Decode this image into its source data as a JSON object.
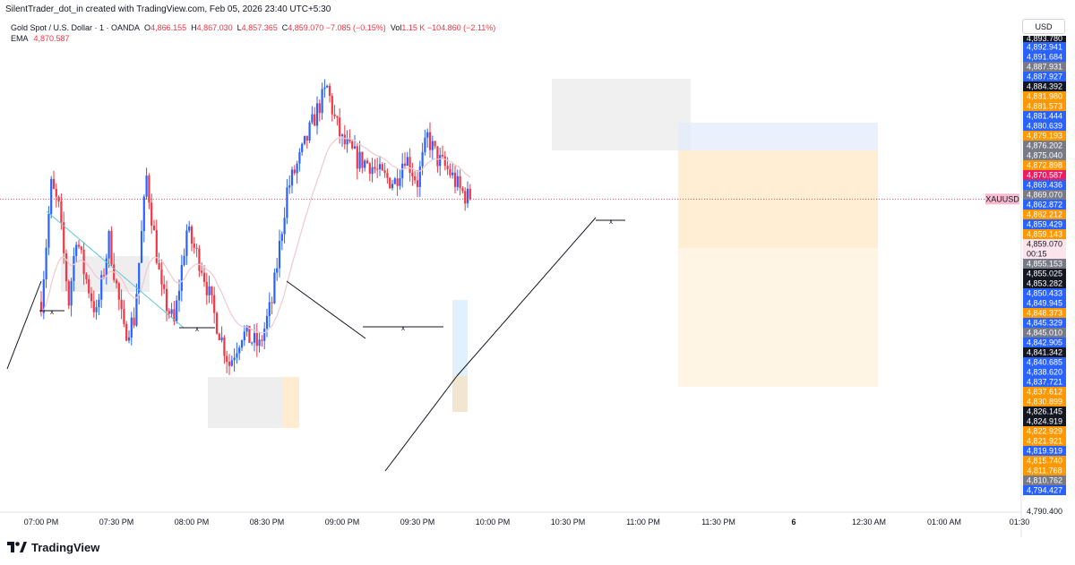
{
  "caption": "SilentTrader_dot_in created with TradingView.com, Feb 05, 2026 23:40 UTC+5:30",
  "legend": {
    "symbol": "Gold Spot / U.S. Dollar · 1 · OANDA",
    "o_label": "O",
    "o": "4,866.155",
    "h_label": "H",
    "h": "4,867.030",
    "l_label": "L",
    "l": "4,857.365",
    "c_label": "C",
    "c": "4,859.070 −7.085 (−0.15%)",
    "vol_label": "Vol",
    "vol": "1.15 K −104.860 (−2.11%)",
    "ema_label": "EMA",
    "ema": "4,870.587"
  },
  "currency_button": "USD",
  "brand": "TradingView",
  "colors": {
    "up": "#2962ff",
    "down": "#f23645",
    "ema": "#f0c9cd",
    "accent": "#131722"
  },
  "chart_data": {
    "type": "candlestick",
    "symbol": "XAUUSD",
    "ylim": [
      4790.4,
      4894.5
    ],
    "x_tick_labels": [
      "07:00 PM",
      "07:30 PM",
      "08:00 PM",
      "08:30 PM",
      "09:00 PM",
      "09:30 PM",
      "10:00 PM",
      "10:30 PM",
      "11:00 PM",
      "11:30 PM",
      "6",
      "12:30 AM",
      "01:00 AM",
      "01:30"
    ],
    "last_price": {
      "label": "XAUUSD",
      "value": "4,859.070",
      "countdown": "00:15",
      "color": "#f23645"
    },
    "price_labels": [
      {
        "value": "4,892.941",
        "color": "#2962ff"
      },
      {
        "value": "4,891.684",
        "color": "#2962ff"
      },
      {
        "value": "4,887.931",
        "color": "#787b86"
      },
      {
        "value": "4,887.927",
        "color": "#2962ff"
      },
      {
        "value": "4,884.392",
        "color": "#131722"
      },
      {
        "value": "4,881.980",
        "color": "#ff9800"
      },
      {
        "value": "4,881.573",
        "color": "#ff9800"
      },
      {
        "value": "4,881.444",
        "color": "#2962ff"
      },
      {
        "value": "4,880.639",
        "color": "#2962ff"
      },
      {
        "value": "4,879.193",
        "color": "#ff9800"
      },
      {
        "value": "4,876.202",
        "color": "#787b86"
      },
      {
        "value": "4,875.040",
        "color": "#787b86"
      },
      {
        "value": "4,872.898",
        "color": "#ff9800"
      },
      {
        "value": "4,870.587",
        "color": "#e91e63"
      },
      {
        "value": "4,869.436",
        "color": "#2962ff"
      },
      {
        "value": "4,869.070",
        "color": "#787b86"
      },
      {
        "value": "4,862.872",
        "color": "#2962ff"
      },
      {
        "value": "4,862.212",
        "color": "#ff9800"
      },
      {
        "value": "4,859.429",
        "color": "#2962ff"
      },
      {
        "value": "4,859.143",
        "color": "#ff9800"
      },
      {
        "value": "4,855.153",
        "color": "#787b86"
      },
      {
        "value": "4,855.025",
        "color": "#131722"
      },
      {
        "value": "4,853.282",
        "color": "#131722"
      },
      {
        "value": "4,850.433",
        "color": "#2962ff"
      },
      {
        "value": "4,849.945",
        "color": "#2962ff"
      },
      {
        "value": "4,848.373",
        "color": "#ff9800"
      },
      {
        "value": "4,845.329",
        "color": "#2962ff"
      },
      {
        "value": "4,845.010",
        "color": "#787b86"
      },
      {
        "value": "4,842.905",
        "color": "#2962ff"
      },
      {
        "value": "4,841.342",
        "color": "#131722"
      },
      {
        "value": "4,840.685",
        "color": "#2962ff"
      },
      {
        "value": "4,838.620",
        "color": "#2962ff"
      },
      {
        "value": "4,837.721",
        "color": "#2962ff"
      },
      {
        "value": "4,837.612",
        "color": "#ff9800"
      },
      {
        "value": "4,830.899",
        "color": "#ff9800"
      },
      {
        "value": "4,826.145",
        "color": "#131722"
      },
      {
        "value": "4,824.919",
        "color": "#131722"
      },
      {
        "value": "4,822.929",
        "color": "#ff9800"
      },
      {
        "value": "4,821.921",
        "color": "#ff9800"
      },
      {
        "value": "4,819.919",
        "color": "#2962ff"
      },
      {
        "value": "4,815.740",
        "color": "#ff9800"
      },
      {
        "value": "4,811.768",
        "color": "#ff9800"
      },
      {
        "value": "4,810.762",
        "color": "#787b86"
      },
      {
        "value": "4,794.427",
        "color": "#2962ff"
      }
    ],
    "price_label_top_partial": "4,893.780",
    "axis_bottom_label": "4,790.400",
    "candle_path": [
      {
        "t": 0,
        "p": 4836
      },
      {
        "t": 4,
        "p": 4862
      },
      {
        "t": 7,
        "p": 4857
      },
      {
        "t": 11,
        "p": 4836
      },
      {
        "t": 14,
        "p": 4851
      },
      {
        "t": 17,
        "p": 4843
      },
      {
        "t": 22,
        "p": 4833
      },
      {
        "t": 27,
        "p": 4850
      },
      {
        "t": 33,
        "p": 4829
      },
      {
        "t": 37,
        "p": 4832
      },
      {
        "t": 42,
        "p": 4864
      },
      {
        "t": 48,
        "p": 4838
      },
      {
        "t": 53,
        "p": 4831
      },
      {
        "t": 58,
        "p": 4852
      },
      {
        "t": 64,
        "p": 4844
      },
      {
        "t": 69,
        "p": 4833
      },
      {
        "t": 75,
        "p": 4822
      },
      {
        "t": 80,
        "p": 4829
      },
      {
        "t": 87,
        "p": 4826
      },
      {
        "t": 92,
        "p": 4836
      },
      {
        "t": 98,
        "p": 4861
      },
      {
        "t": 103,
        "p": 4868
      },
      {
        "t": 110,
        "p": 4879
      },
      {
        "t": 114,
        "p": 4884
      },
      {
        "t": 117,
        "p": 4877
      },
      {
        "t": 120,
        "p": 4872
      },
      {
        "t": 126,
        "p": 4868
      },
      {
        "t": 131,
        "p": 4867
      },
      {
        "t": 136,
        "p": 4864
      },
      {
        "t": 141,
        "p": 4863
      },
      {
        "t": 145,
        "p": 4869
      },
      {
        "t": 150,
        "p": 4863
      },
      {
        "t": 154,
        "p": 4873
      },
      {
        "t": 158,
        "p": 4868
      },
      {
        "t": 163,
        "p": 4865
      },
      {
        "t": 167,
        "p": 4861
      },
      {
        "t": 171,
        "p": 4859
      }
    ]
  }
}
